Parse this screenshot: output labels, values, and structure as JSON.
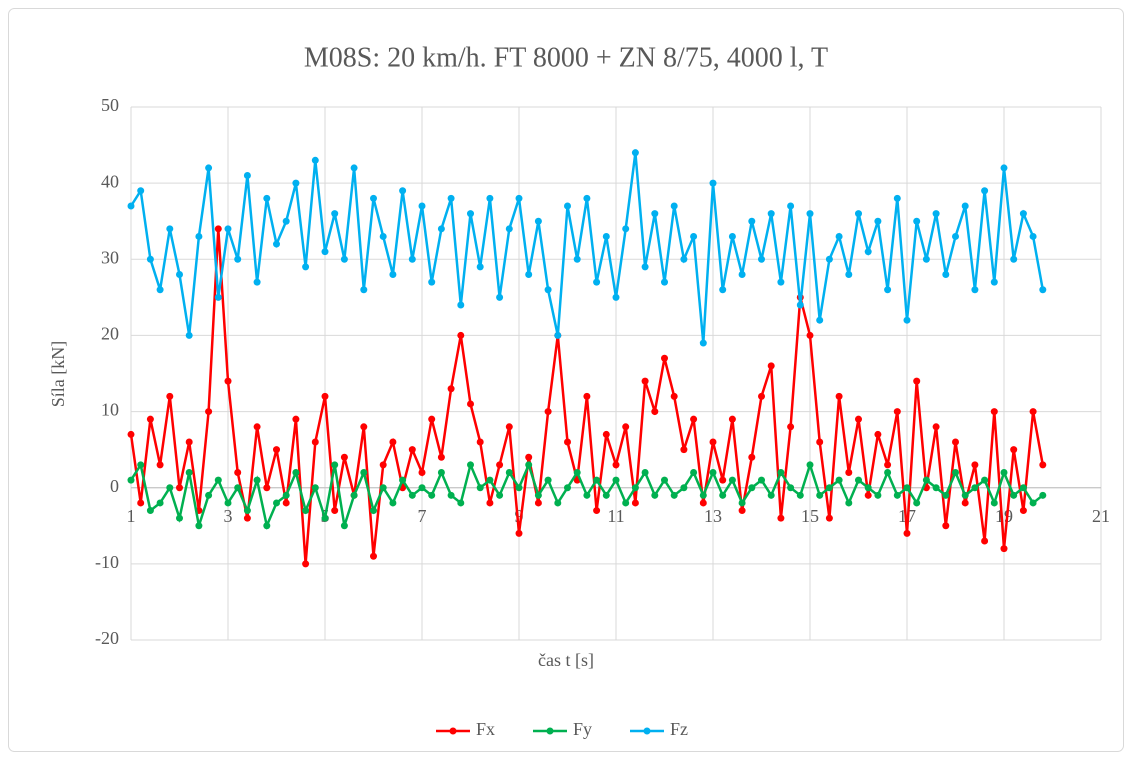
{
  "chart_data": {
    "type": "line",
    "title": "M08S: 20 km/h. FT 8000 + ZN 8/75, 4000 l, T",
    "x_label": "čas t [s]",
    "y_label": "Síla [kN]",
    "xlim": [
      1,
      21
    ],
    "xticks": [
      1,
      3,
      5,
      7,
      9,
      11,
      13,
      15,
      17,
      19,
      21
    ],
    "ylim": [
      -20,
      50
    ],
    "yticks": [
      -20,
      -10,
      0,
      10,
      20,
      30,
      40,
      50
    ],
    "grid": true,
    "legend": "bottom",
    "x": [
      1.0,
      1.2,
      1.4,
      1.6,
      1.8,
      2.0,
      2.2,
      2.4,
      2.6,
      2.8,
      3.0,
      3.2,
      3.4,
      3.6,
      3.8,
      4.0,
      4.2,
      4.4,
      4.6,
      4.8,
      5.0,
      5.2,
      5.4,
      5.6,
      5.8,
      6.0,
      6.2,
      6.4,
      6.6,
      6.8,
      7.0,
      7.2,
      7.4,
      7.6,
      7.8,
      8.0,
      8.2,
      8.4,
      8.6,
      8.8,
      9.0,
      9.2,
      9.4,
      9.6,
      9.8,
      10.0,
      10.2,
      10.4,
      10.6,
      10.8,
      11.0,
      11.2,
      11.4,
      11.6,
      11.8,
      12.0,
      12.2,
      12.4,
      12.6,
      12.8,
      13.0,
      13.2,
      13.4,
      13.6,
      13.8,
      14.0,
      14.2,
      14.4,
      14.6,
      14.8,
      15.0,
      15.2,
      15.4,
      15.6,
      15.8,
      16.0,
      16.2,
      16.4,
      16.6,
      16.8,
      17.0,
      17.2,
      17.4,
      17.6,
      17.8,
      18.0,
      18.2,
      18.4,
      18.6,
      18.8,
      19.0,
      19.2,
      19.4,
      19.6,
      19.8
    ],
    "series": [
      {
        "name": "Fx",
        "color": "#ff0000",
        "values": [
          7,
          -2,
          9,
          3,
          12,
          0,
          6,
          -3,
          10,
          34,
          14,
          2,
          -4,
          8,
          0,
          5,
          -2,
          9,
          -10,
          6,
          12,
          -3,
          4,
          -1,
          8,
          -9,
          3,
          6,
          0,
          5,
          2,
          9,
          4,
          13,
          20,
          11,
          6,
          -2,
          3,
          8,
          -6,
          4,
          -2,
          10,
          20,
          6,
          1,
          12,
          -3,
          7,
          3,
          8,
          -2,
          14,
          10,
          17,
          12,
          5,
          9,
          -2,
          6,
          1,
          9,
          -3,
          4,
          12,
          16,
          -4,
          8,
          25,
          20,
          6,
          -4,
          12,
          2,
          9,
          -1,
          7,
          3,
          10,
          -6,
          14,
          0,
          8,
          -5,
          6,
          -2,
          3,
          -7,
          10,
          -8,
          5,
          -3,
          10,
          3
        ]
      },
      {
        "name": "Fy",
        "color": "#00b050",
        "values": [
          1,
          3,
          -3,
          -2,
          0,
          -4,
          2,
          -5,
          -1,
          1,
          -2,
          0,
          -3,
          1,
          -5,
          -2,
          -1,
          2,
          -3,
          0,
          -4,
          3,
          -5,
          -1,
          2,
          -3,
          0,
          -2,
          1,
          -1,
          0,
          -1,
          2,
          -1,
          -2,
          3,
          0,
          1,
          -1,
          2,
          0,
          3,
          -1,
          1,
          -2,
          0,
          2,
          -1,
          1,
          -1,
          1,
          -2,
          0,
          2,
          -1,
          1,
          -1,
          0,
          2,
          -1,
          2,
          -1,
          1,
          -2,
          0,
          1,
          -1,
          2,
          0,
          -1,
          3,
          -1,
          0,
          1,
          -2,
          1,
          0,
          -1,
          2,
          -1,
          0,
          -2,
          1,
          0,
          -1,
          2,
          -1,
          0,
          1,
          -2,
          2,
          -1,
          0,
          -2,
          -1
        ]
      },
      {
        "name": "Fz",
        "color": "#00b0f0",
        "values": [
          37,
          39,
          30,
          26,
          34,
          28,
          20,
          33,
          42,
          25,
          34,
          30,
          41,
          27,
          38,
          32,
          35,
          40,
          29,
          43,
          31,
          36,
          30,
          42,
          26,
          38,
          33,
          28,
          39,
          30,
          37,
          27,
          34,
          38,
          24,
          36,
          29,
          38,
          25,
          34,
          38,
          28,
          35,
          26,
          20,
          37,
          30,
          38,
          27,
          33,
          25,
          34,
          44,
          29,
          36,
          27,
          37,
          30,
          33,
          19,
          40,
          26,
          33,
          28,
          35,
          30,
          36,
          27,
          37,
          24,
          36,
          22,
          30,
          33,
          28,
          36,
          31,
          35,
          26,
          38,
          22,
          35,
          30,
          36,
          28,
          33,
          37,
          26,
          39,
          27,
          42,
          30,
          36,
          33,
          26
        ]
      }
    ]
  }
}
